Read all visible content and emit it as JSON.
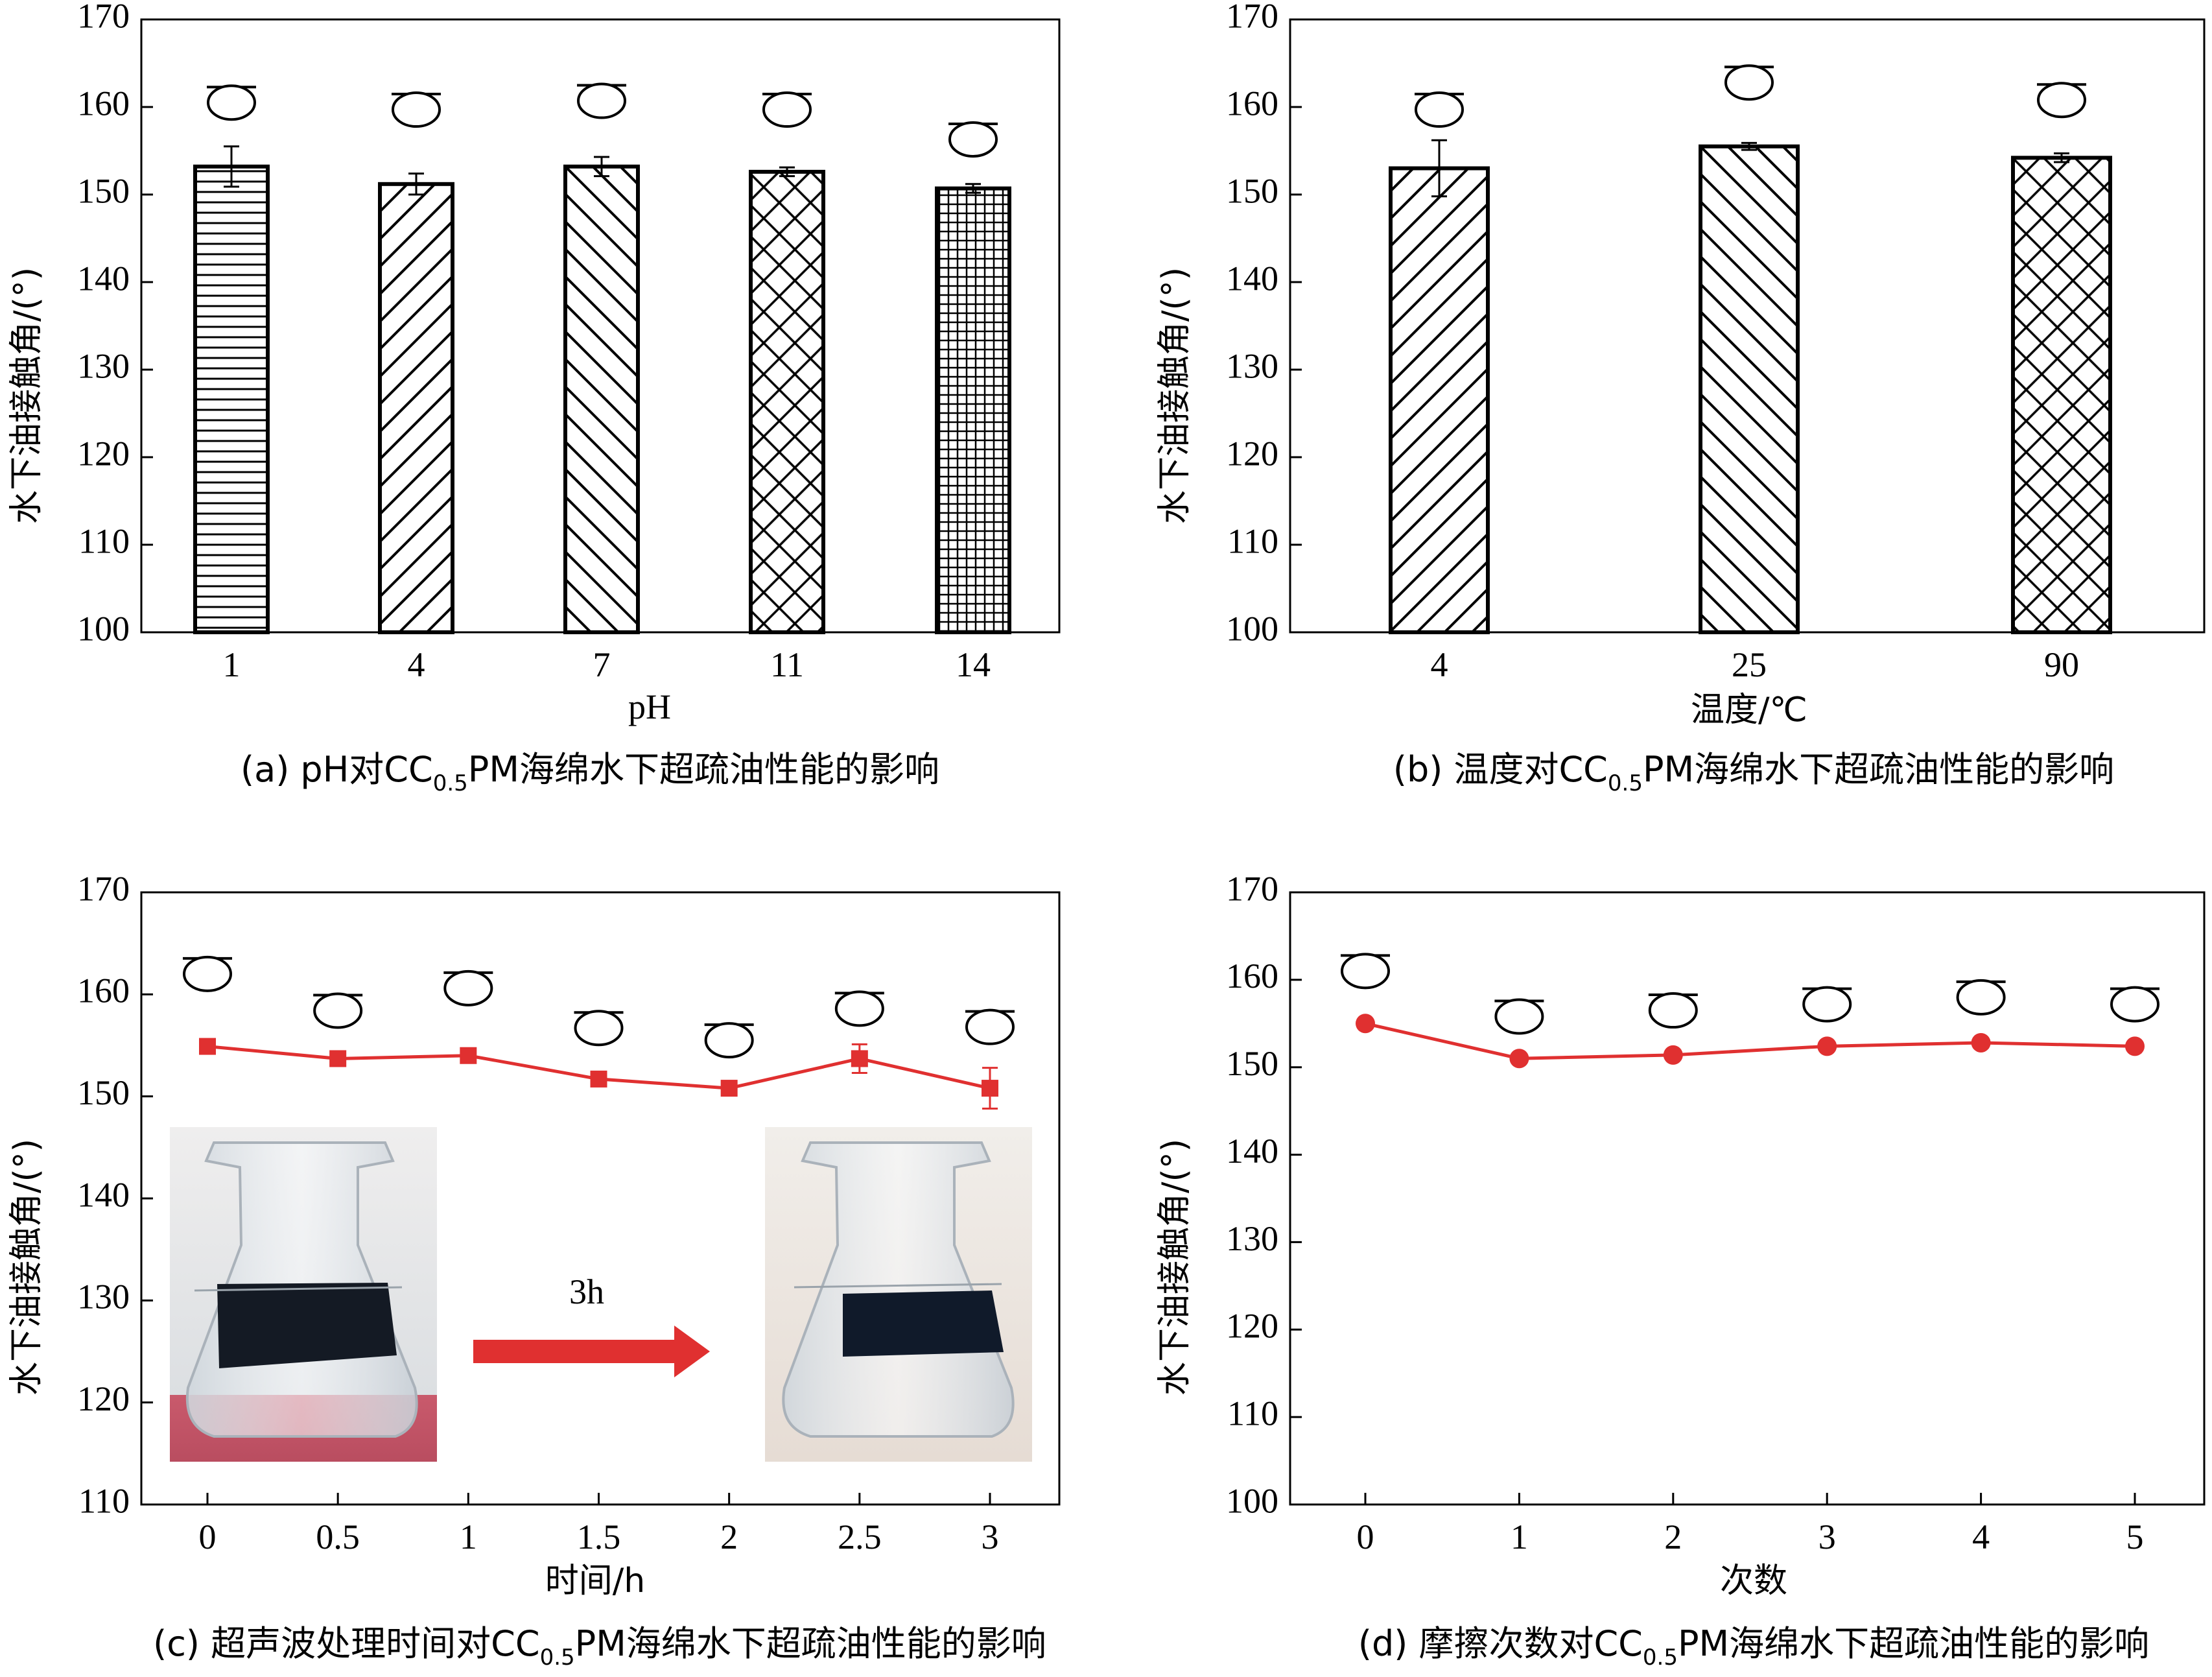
{
  "ylabel": "水下油接触角/(°)",
  "chart_data": [
    {
      "id": "a",
      "type": "bar",
      "caption": {
        "prefix": "(a) pH对CC",
        "sub": "0.5",
        "suffix": "PM海绵水下超疏油性能的影响"
      },
      "xlabel": "pH",
      "ylabel": "水下油接触角/(°)",
      "ylim": [
        100,
        170
      ],
      "yticks": [
        100,
        110,
        120,
        130,
        140,
        150,
        160,
        170
      ],
      "categories": [
        "1",
        "4",
        "7",
        "11",
        "14"
      ],
      "values": [
        153.2,
        151.2,
        153.2,
        152.6,
        150.7
      ],
      "errors": [
        2.3,
        1.2,
        1.1,
        0.5,
        0.5
      ],
      "patterns": [
        "hlines",
        "diag-right",
        "diag-left",
        "cross",
        "grid"
      ],
      "drop_angles": [
        160.5,
        159.7,
        160.7,
        159.7,
        156.3
      ]
    },
    {
      "id": "b",
      "type": "bar",
      "caption": {
        "prefix": "(b) 温度对CC",
        "sub": "0.5",
        "suffix": "PM海绵水下超疏油性能的影响"
      },
      "xlabel": "温度/℃",
      "ylabel": "水下油接触角/(°)",
      "ylim": [
        100,
        170
      ],
      "yticks": [
        100,
        110,
        120,
        130,
        140,
        150,
        160,
        170
      ],
      "categories": [
        "4",
        "25",
        "90"
      ],
      "values": [
        153.0,
        155.5,
        154.2
      ],
      "errors": [
        3.2,
        0.4,
        0.5
      ],
      "patterns": [
        "diag-right",
        "diag-left",
        "cross"
      ],
      "drop_angles": [
        159.7,
        162.8,
        160.8
      ]
    },
    {
      "id": "c",
      "type": "line",
      "caption": {
        "prefix": "(c) 超声波处理时间对CC",
        "sub": "0.5",
        "suffix": "PM海绵水下超疏油性能的影响"
      },
      "xlabel": "时间/h",
      "ylabel": "水下油接触角/(°)",
      "ylim": [
        110,
        170
      ],
      "yticks": [
        110,
        120,
        130,
        140,
        150,
        160,
        170
      ],
      "x": [
        0,
        0.5,
        1,
        1.5,
        2,
        2.5,
        3
      ],
      "xticklabels": [
        "0",
        "0.5",
        "1",
        "1.5",
        "2",
        "2.5",
        "3"
      ],
      "series": [
        {
          "name": "CC0.5PM",
          "values": [
            154.9,
            153.7,
            154.0,
            151.7,
            150.8,
            153.7,
            150.8
          ],
          "errors": [
            0.3,
            0.3,
            0.3,
            0.3,
            0.3,
            1.4,
            2.0
          ]
        }
      ],
      "marker": "square",
      "color": "#e03030",
      "drop_angles": [
        162.0,
        158.4,
        160.6,
        156.7,
        155.5,
        158.6,
        156.8
      ],
      "annotation": "3h"
    },
    {
      "id": "d",
      "type": "line",
      "caption": {
        "prefix": "(d) 摩擦次数对CC",
        "sub": "0.5",
        "suffix": "PM海绵水下超疏油性能的影响"
      },
      "xlabel": "次数",
      "ylabel": "水下油接触角/(°)",
      "ylim": [
        100,
        170
      ],
      "yticks": [
        100,
        110,
        120,
        130,
        140,
        150,
        160,
        170
      ],
      "x": [
        0,
        1,
        2,
        3,
        4,
        5
      ],
      "xticklabels": [
        "0",
        "1",
        "2",
        "3",
        "4",
        "5"
      ],
      "series": [
        {
          "name": "CC0.5PM",
          "values": [
            155.0,
            151.0,
            151.4,
            152.4,
            152.8,
            152.4
          ]
        }
      ],
      "marker": "circle",
      "color": "#e03030",
      "drop_angles": [
        161.0,
        155.8,
        156.5,
        157.2,
        158.0,
        157.2
      ]
    }
  ]
}
